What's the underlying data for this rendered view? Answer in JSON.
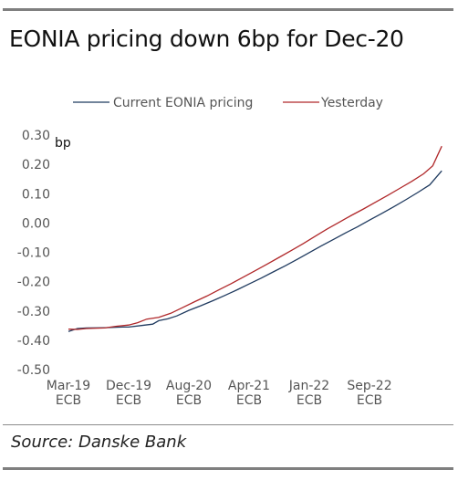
{
  "title": "EONIA pricing down 6bp for Dec-20",
  "source": "Source: Danske Bank",
  "chart_data": {
    "type": "line",
    "ylabel": "bp",
    "ylim": [
      -0.5,
      0.3
    ],
    "yticks": [
      0.3,
      0.2,
      0.1,
      0.0,
      -0.1,
      -0.2,
      -0.3,
      -0.4,
      -0.5
    ],
    "ytick_labels": [
      "0.30",
      "0.20",
      "0.10",
      "0.00",
      "-0.10",
      "-0.20",
      "-0.30",
      "-0.40",
      "-0.50"
    ],
    "xticks": [
      {
        "line1": "Mar-19",
        "line2": "ECB"
      },
      {
        "line1": "Dec-19",
        "line2": "ECB"
      },
      {
        "line1": "Aug-20",
        "line2": "ECB"
      },
      {
        "line1": "Apr-21",
        "line2": "ECB"
      },
      {
        "line1": "Jan-22",
        "line2": "ECB"
      },
      {
        "line1": "Sep-22",
        "line2": "ECB"
      }
    ],
    "x_span": [
      0,
      6.2
    ],
    "grid": false,
    "legend_position": "top",
    "series": [
      {
        "name": "Current EONIA pricing",
        "color": "#1f3a5f",
        "points": [
          [
            0.0,
            -0.37
          ],
          [
            0.15,
            -0.36
          ],
          [
            0.3,
            -0.358
          ],
          [
            0.6,
            -0.357
          ],
          [
            0.9,
            -0.355
          ],
          [
            1.0,
            -0.355
          ],
          [
            1.2,
            -0.35
          ],
          [
            1.4,
            -0.345
          ],
          [
            1.5,
            -0.333
          ],
          [
            1.65,
            -0.327
          ],
          [
            1.8,
            -0.317
          ],
          [
            2.0,
            -0.298
          ],
          [
            2.2,
            -0.282
          ],
          [
            2.4,
            -0.265
          ],
          [
            2.6,
            -0.247
          ],
          [
            2.8,
            -0.228
          ],
          [
            3.0,
            -0.208
          ],
          [
            3.2,
            -0.188
          ],
          [
            3.4,
            -0.167
          ],
          [
            3.6,
            -0.146
          ],
          [
            3.8,
            -0.124
          ],
          [
            4.0,
            -0.101
          ],
          [
            4.2,
            -0.078
          ],
          [
            4.4,
            -0.056
          ],
          [
            4.6,
            -0.034
          ],
          [
            4.8,
            -0.013
          ],
          [
            5.0,
            0.01
          ],
          [
            5.2,
            0.032
          ],
          [
            5.4,
            0.055
          ],
          [
            5.6,
            0.079
          ],
          [
            5.8,
            0.104
          ],
          [
            6.0,
            0.13
          ],
          [
            6.2,
            0.178
          ]
        ]
      },
      {
        "name": "Yesterday",
        "color": "#b0282a",
        "points": [
          [
            0.0,
            -0.362
          ],
          [
            0.15,
            -0.363
          ],
          [
            0.3,
            -0.36
          ],
          [
            0.6,
            -0.358
          ],
          [
            0.8,
            -0.352
          ],
          [
            1.0,
            -0.348
          ],
          [
            1.15,
            -0.34
          ],
          [
            1.3,
            -0.328
          ],
          [
            1.5,
            -0.322
          ],
          [
            1.7,
            -0.308
          ],
          [
            1.9,
            -0.288
          ],
          [
            2.1,
            -0.268
          ],
          [
            2.3,
            -0.249
          ],
          [
            2.5,
            -0.228
          ],
          [
            2.7,
            -0.207
          ],
          [
            2.9,
            -0.185
          ],
          [
            3.1,
            -0.163
          ],
          [
            3.3,
            -0.14
          ],
          [
            3.5,
            -0.117
          ],
          [
            3.7,
            -0.094
          ],
          [
            3.9,
            -0.07
          ],
          [
            4.1,
            -0.045
          ],
          [
            4.3,
            -0.02
          ],
          [
            4.5,
            0.003
          ],
          [
            4.7,
            0.026
          ],
          [
            4.9,
            0.048
          ],
          [
            5.1,
            0.071
          ],
          [
            5.3,
            0.094
          ],
          [
            5.5,
            0.118
          ],
          [
            5.7,
            0.142
          ],
          [
            5.9,
            0.168
          ],
          [
            6.05,
            0.195
          ],
          [
            6.2,
            0.262
          ]
        ]
      }
    ]
  }
}
